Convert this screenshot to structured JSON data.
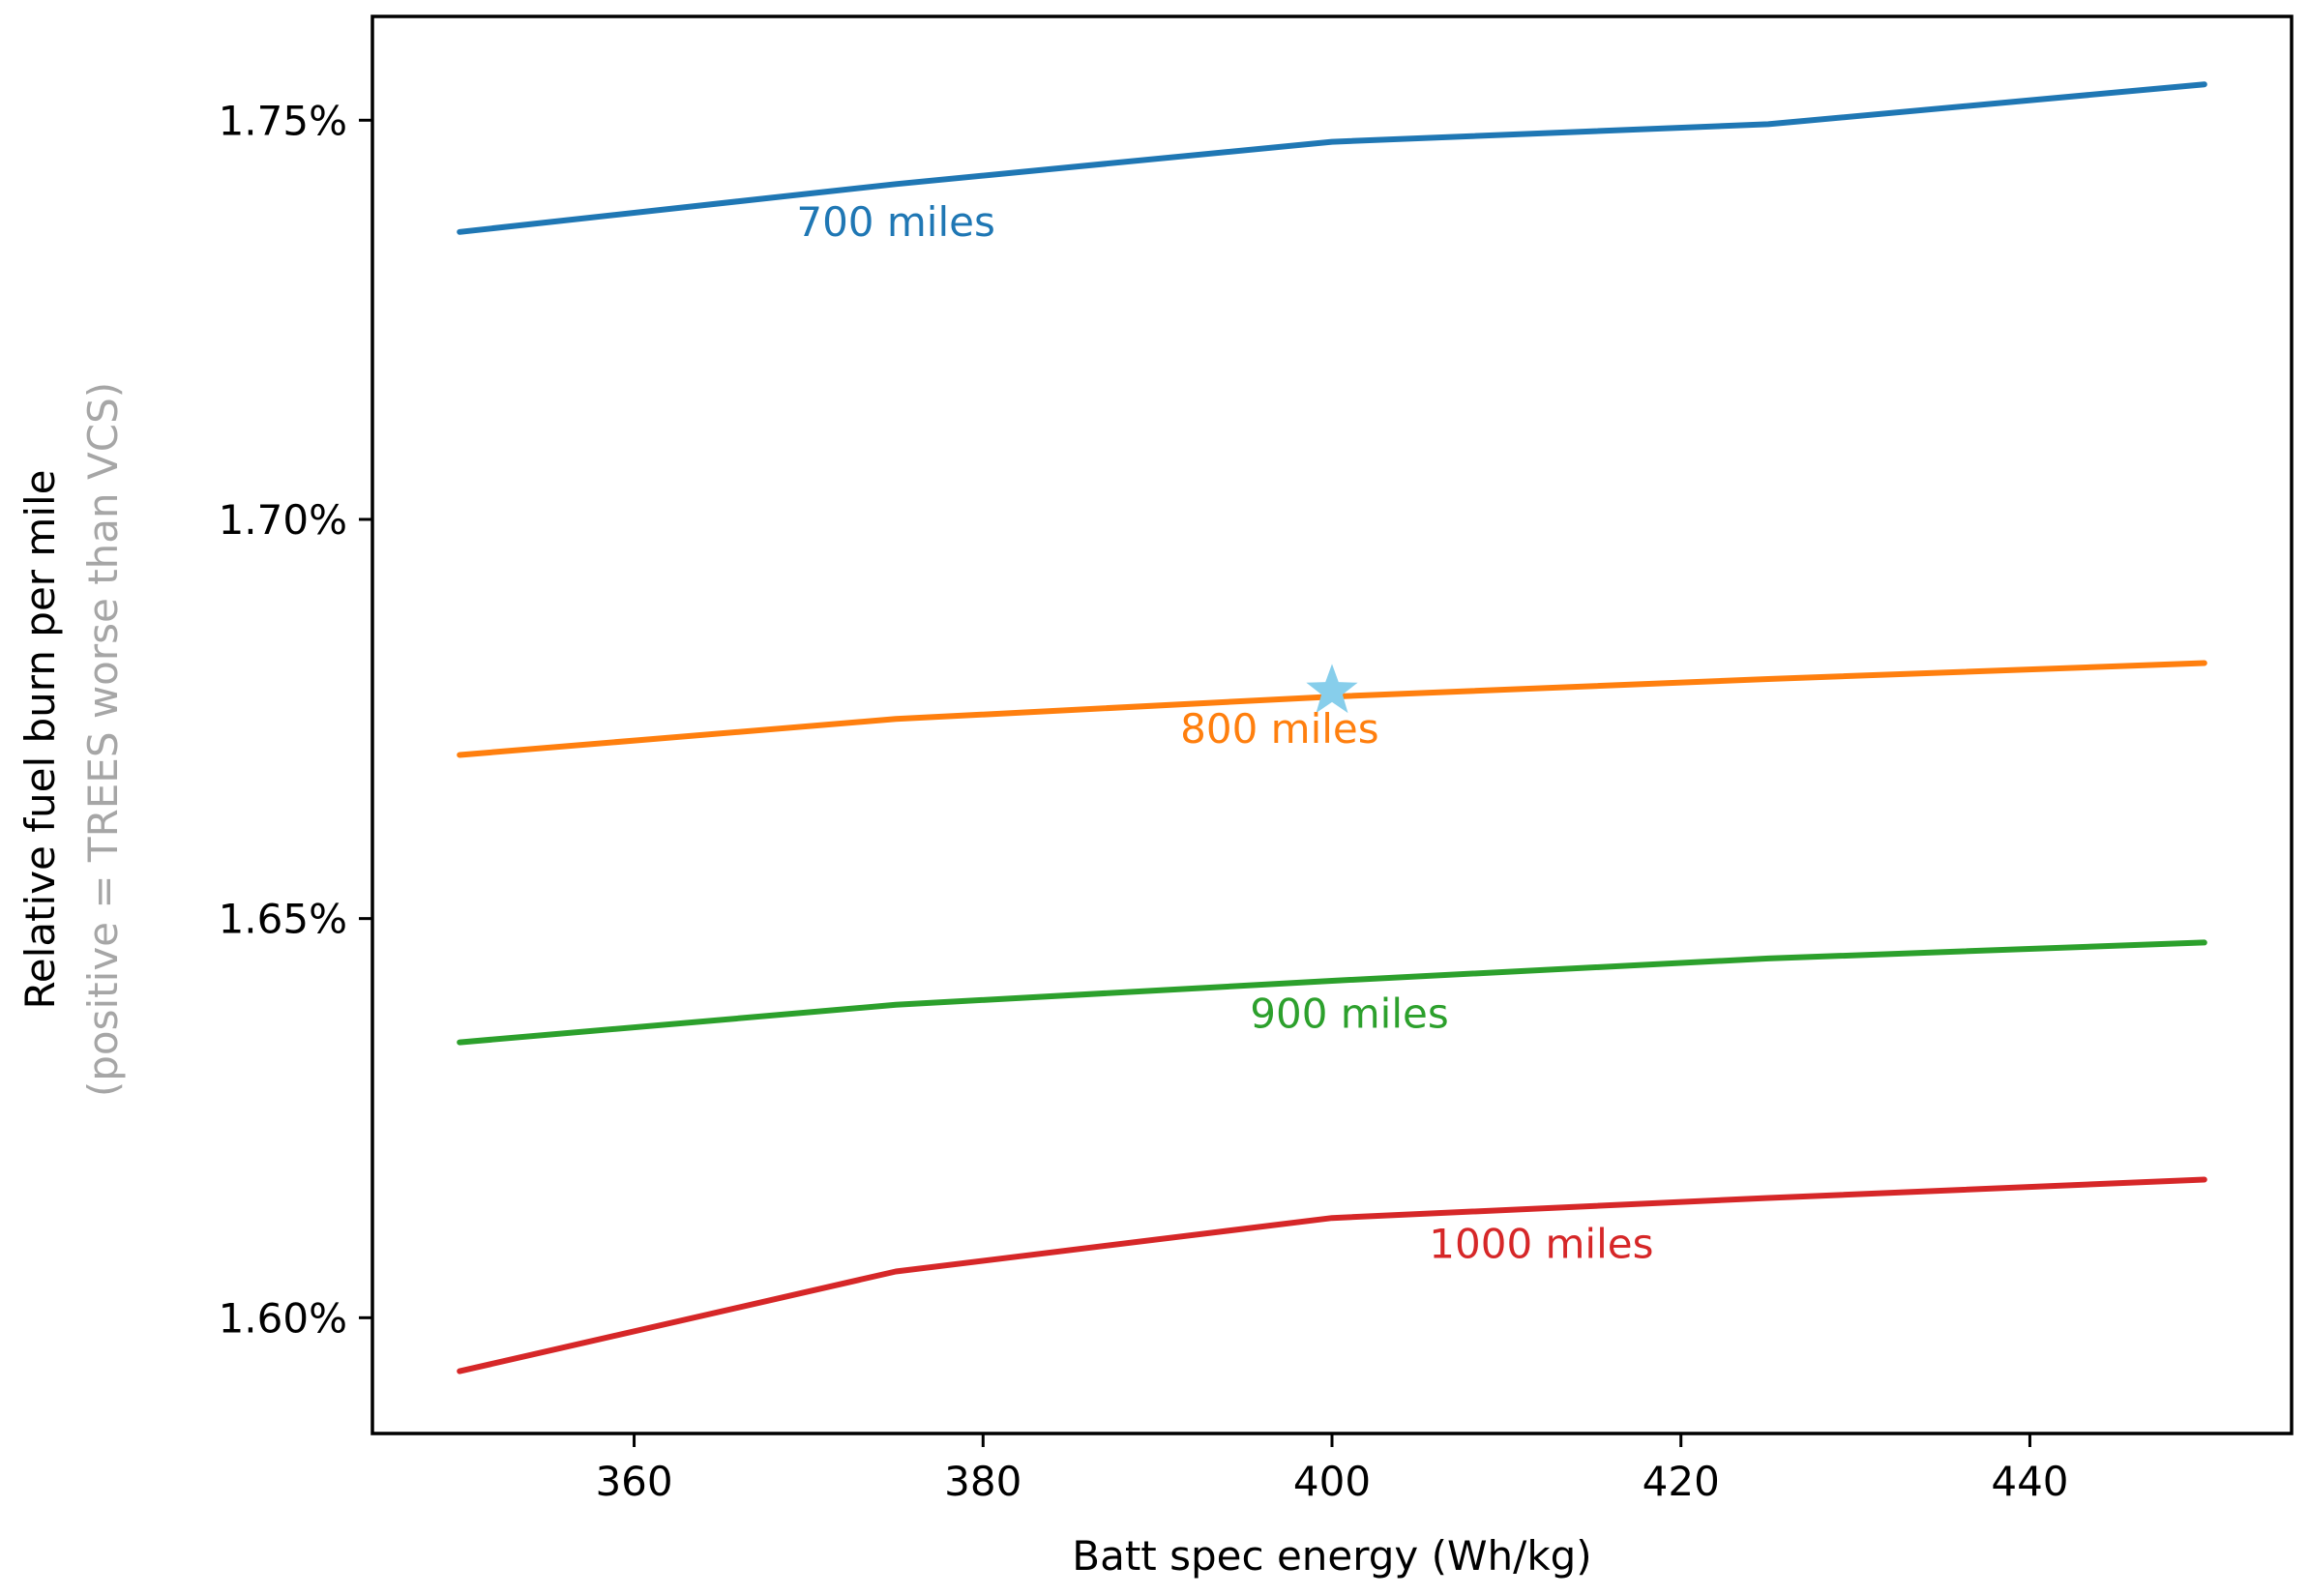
{
  "chart_data": {
    "type": "line",
    "title": "",
    "xlabel": "Batt spec energy (Wh/kg)",
    "ylabel": "Relative fuel burn per mile",
    "ylabel_note": "(positive = TREES worse than VCS)",
    "xlim": [
      345,
      455
    ],
    "ylim": [
      1.5855,
      1.763
    ],
    "x_ticks": [
      360,
      380,
      400,
      420,
      440
    ],
    "x_tick_labels": [
      "360",
      "380",
      "400",
      "420",
      "440"
    ],
    "y_ticks": [
      1.6,
      1.65,
      1.7,
      1.75
    ],
    "y_tick_labels": [
      "1.60%",
      "1.65%",
      "1.70%",
      "1.75%"
    ],
    "x": [
      350,
      375,
      400,
      425,
      450
    ],
    "series": [
      {
        "name": "700 miles",
        "color": "#1f77b4",
        "values": [
          1.736,
          1.742,
          1.7473,
          1.7495,
          1.7545
        ],
        "label_x": 375,
        "label_y": 1.7355
      },
      {
        "name": "800 miles",
        "color": "#ff7f0e",
        "values": [
          1.6705,
          1.675,
          1.6778,
          1.68,
          1.682
        ],
        "label_x": 397,
        "label_y": 1.672
      },
      {
        "name": "900 miles",
        "color": "#2ca02c",
        "values": [
          1.6345,
          1.6392,
          1.6422,
          1.645,
          1.647
        ],
        "label_x": 401,
        "label_y": 1.6363
      },
      {
        "name": "1000 miles",
        "color": "#d62728",
        "values": [
          1.5933,
          1.6058,
          1.6125,
          1.615,
          1.6173
        ],
        "label_x": 412,
        "label_y": 1.6075
      }
    ],
    "marker": {
      "shape": "star",
      "x": 400,
      "y": 1.6785,
      "color": "#87ceeb"
    },
    "grid": false,
    "legend": "inline"
  }
}
